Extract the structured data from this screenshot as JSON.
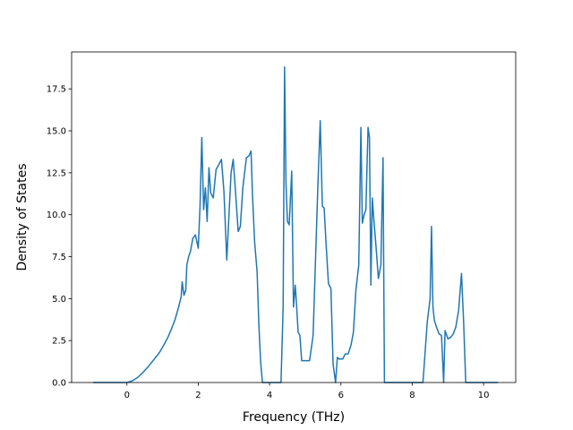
{
  "chart_data": {
    "type": "line",
    "title": "",
    "xlabel": "Frequency (THz)",
    "ylabel": "Density of States",
    "xlim": [
      -1.55,
      10.9
    ],
    "ylim": [
      0,
      19.7
    ],
    "xticks": [
      0,
      2,
      4,
      6,
      8,
      10
    ],
    "yticks": [
      0.0,
      2.5,
      5.0,
      7.5,
      10.0,
      12.5,
      15.0,
      17.5
    ],
    "ytick_labels": [
      "0.0",
      "2.5",
      "5.0",
      "7.5",
      "10.0",
      "12.5",
      "15.0",
      "17.5"
    ],
    "grid": false,
    "line_color": "#1f77b4",
    "series": [
      {
        "x": [
          -0.95,
          -0.4,
          0.0,
          0.15,
          0.3,
          0.45,
          0.6,
          0.75,
          0.9,
          1.0,
          1.15,
          1.25,
          1.35,
          1.45,
          1.52,
          1.55,
          1.6,
          1.65,
          1.68,
          1.73,
          1.78,
          1.85,
          1.92,
          2.0,
          2.05,
          2.1,
          2.15,
          2.2,
          2.25,
          2.3,
          2.35,
          2.42,
          2.5,
          2.58,
          2.65,
          2.72,
          2.8,
          2.85,
          2.92,
          2.98,
          3.05,
          3.12,
          3.18,
          3.25,
          3.35,
          3.42,
          3.48,
          3.52,
          3.58,
          3.65,
          3.7,
          3.75,
          3.8,
          3.9,
          4.0,
          4.1,
          4.2,
          4.32,
          4.38,
          4.42,
          4.46,
          4.5,
          4.55,
          4.62,
          4.67,
          4.72,
          4.76,
          4.8,
          4.85,
          4.9,
          5.0,
          5.12,
          5.22,
          5.35,
          5.42,
          5.48,
          5.53,
          5.58,
          5.65,
          5.72,
          5.78,
          5.85,
          5.9,
          5.95,
          6.05,
          6.12,
          6.2,
          6.28,
          6.35,
          6.42,
          6.5,
          6.56,
          6.6,
          6.65,
          6.7,
          6.76,
          6.8,
          6.84,
          6.88,
          6.92,
          6.98,
          7.05,
          7.12,
          7.18,
          7.22,
          7.25,
          7.28,
          7.35,
          7.5,
          7.8,
          8.1,
          8.3,
          8.42,
          8.5,
          8.54,
          8.58,
          8.62,
          8.68,
          8.75,
          8.82,
          8.88,
          8.92,
          9.0,
          9.08,
          9.15,
          9.22,
          9.3,
          9.38,
          9.44,
          9.5,
          9.55,
          9.7,
          10.0,
          10.4
        ],
        "y": [
          0.0,
          0.0,
          0.0,
          0.1,
          0.3,
          0.6,
          0.95,
          1.35,
          1.75,
          2.1,
          2.7,
          3.2,
          3.75,
          4.5,
          5.1,
          6.0,
          5.2,
          5.5,
          7.0,
          7.5,
          7.8,
          8.6,
          8.8,
          8.0,
          10.5,
          14.6,
          10.3,
          11.6,
          9.6,
          12.8,
          11.3,
          11.0,
          12.7,
          13.0,
          13.3,
          11.4,
          7.3,
          9.5,
          12.5,
          13.3,
          11.2,
          9.0,
          9.3,
          11.6,
          13.4,
          13.5,
          13.8,
          11.2,
          8.4,
          6.6,
          3.4,
          1.2,
          0.0,
          0.0,
          0.0,
          0.0,
          0.0,
          0.0,
          4.5,
          18.8,
          11.9,
          9.6,
          9.4,
          12.6,
          4.5,
          5.8,
          4.5,
          3.0,
          2.8,
          1.3,
          1.3,
          1.3,
          2.8,
          11.5,
          15.6,
          10.5,
          10.4,
          8.4,
          5.9,
          5.6,
          1.1,
          0.0,
          1.5,
          1.4,
          1.4,
          1.7,
          1.7,
          2.2,
          3.0,
          5.5,
          7.0,
          15.2,
          9.5,
          10.0,
          10.3,
          15.2,
          14.6,
          5.8,
          11.0,
          9.8,
          8.2,
          6.2,
          7.0,
          13.4,
          0.0,
          0.0,
          0.0,
          0.0,
          0.0,
          0.0,
          0.0,
          0.0,
          3.6,
          5.0,
          9.3,
          4.5,
          3.7,
          3.3,
          2.9,
          2.8,
          0.0,
          3.1,
          2.6,
          2.7,
          2.9,
          3.3,
          4.3,
          6.5,
          3.6,
          0.0,
          0.0,
          0.0,
          0.0,
          0.0
        ]
      }
    ]
  }
}
